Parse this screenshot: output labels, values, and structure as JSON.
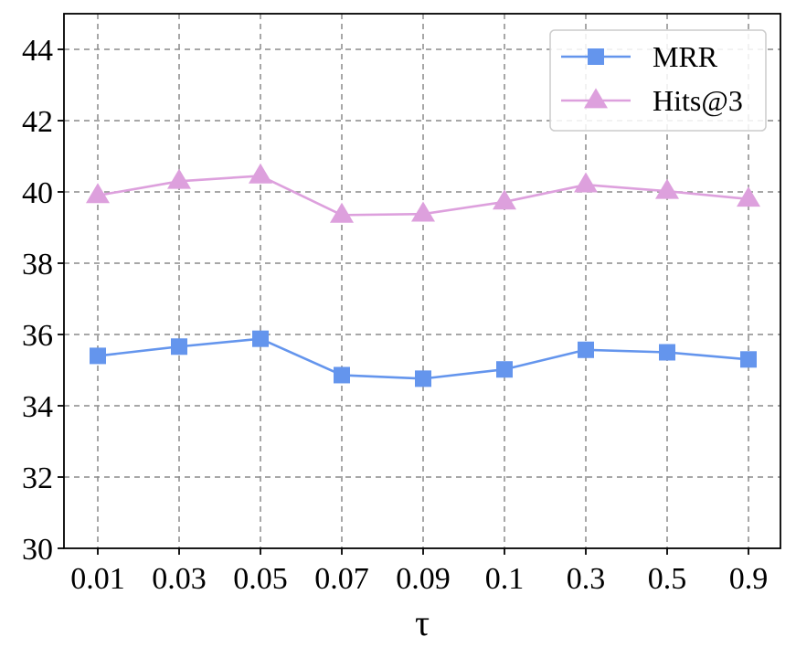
{
  "chart_data": {
    "type": "line",
    "categories": [
      "0.01",
      "0.03",
      "0.05",
      "0.07",
      "0.09",
      "0.1",
      "0.3",
      "0.5",
      "0.9"
    ],
    "series": [
      {
        "name": "MRR",
        "marker": "square",
        "color": "#6495ED",
        "values": [
          35.4,
          35.66,
          35.88,
          34.86,
          34.76,
          35.02,
          35.57,
          35.5,
          35.3
        ]
      },
      {
        "name": "Hits@3",
        "marker": "triangle",
        "color": "#DDA0DD",
        "values": [
          39.9,
          40.3,
          40.45,
          39.35,
          39.38,
          39.72,
          40.2,
          40.02,
          39.8
        ]
      }
    ],
    "xlabel": "τ",
    "ylabel": "",
    "ylim": [
      30,
      45
    ],
    "yticks": [
      "30",
      "32",
      "34",
      "36",
      "38",
      "40",
      "42",
      "44"
    ],
    "grid": true,
    "legend_position": "top-right"
  }
}
